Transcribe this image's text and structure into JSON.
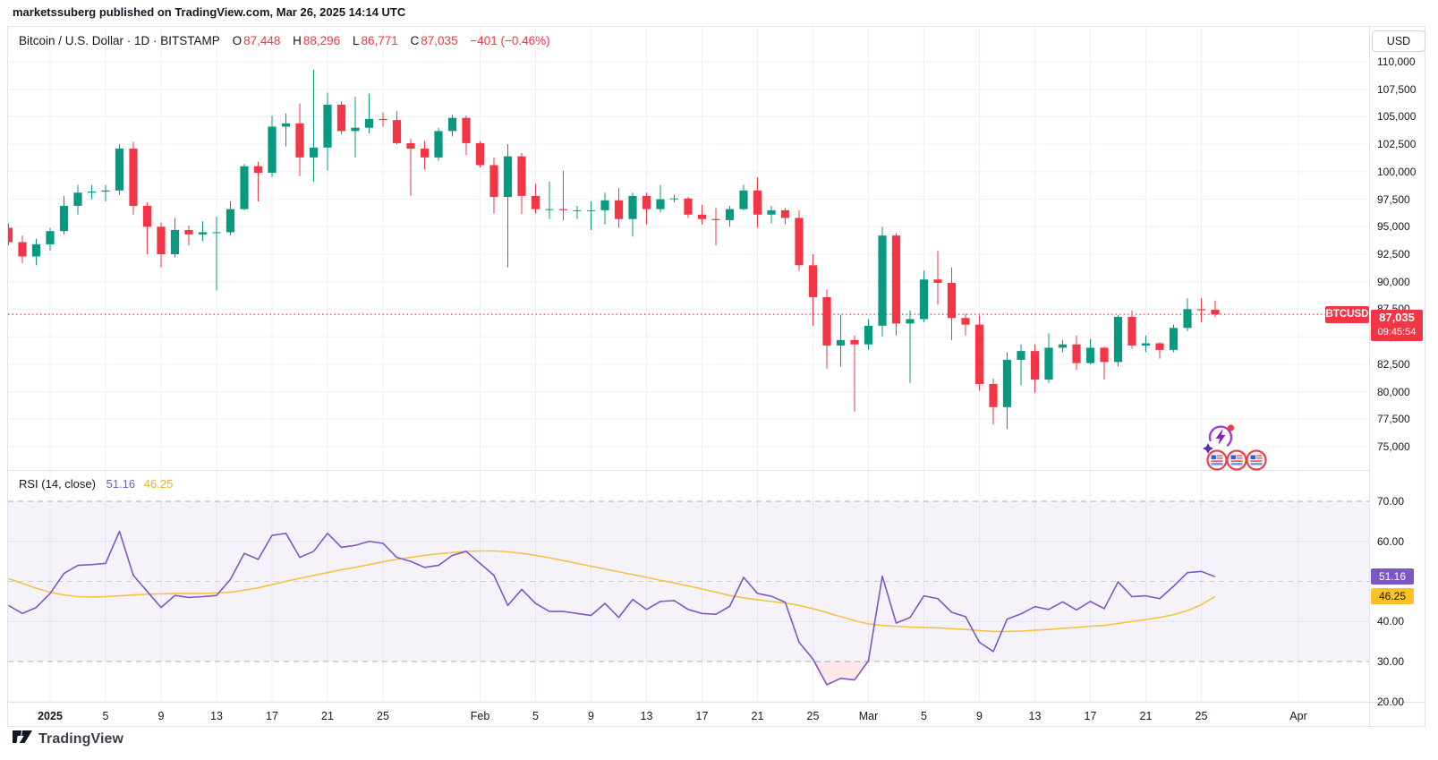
{
  "attribution": "marketssuberg published on TradingView.com, Mar 26, 2025 14:14 UTC",
  "header": {
    "symbol_title": "Bitcoin / U.S. Dollar · 1D · BITSTAMP",
    "o_label": "O",
    "o_value": "87,448",
    "h_label": "H",
    "h_value": "88,296",
    "l_label": "L",
    "l_value": "86,771",
    "c_label": "C",
    "c_value": "87,035",
    "change": "−401 (−0.46%)"
  },
  "price_axis": {
    "currency_button": "USD",
    "labels": [
      "110,000",
      "107,500",
      "105,000",
      "102,500",
      "100,000",
      "97,500",
      "95,000",
      "92,500",
      "90,000",
      "87,500",
      "85,000",
      "82,500",
      "80,000",
      "77,500",
      "75,000"
    ],
    "current_badge": {
      "symbol": "BTCUSD",
      "price": "87,035",
      "countdown": "09:45:54"
    }
  },
  "rsi_header": {
    "title": "RSI (14, close)",
    "value": "51.16",
    "ma_value": "46.25"
  },
  "rsi_axis_labels": [
    {
      "text": "70.00",
      "value": 70
    },
    {
      "text": "60.00",
      "value": 60
    },
    {
      "text": "40.00",
      "value": 40
    },
    {
      "text": "30.00",
      "value": 30
    },
    {
      "text": "20.00",
      "value": 20
    }
  ],
  "footer": {
    "logo_text": "TradingView"
  },
  "colors": {
    "up": "#089981",
    "down": "#f23645",
    "accent_red": "#f23645",
    "rsi_line": "#7e57c2",
    "rsi_ma_line": "#f5c342",
    "band_fill": "rgba(126,87,194,0.08)",
    "oversold_fill": "rgba(242,54,69,0.12)",
    "grid": "#eef0f6",
    "dashed": "#787b86",
    "text": "#131722",
    "border": "#e0e3eb"
  },
  "chart_data": {
    "type": "candlestick",
    "title": "Bitcoin / U.S. Dollar",
    "exchange": "BITSTAMP",
    "interval": "1D",
    "currency": "USD",
    "current_price": 87035,
    "price_axis_range": [
      75000,
      110000
    ],
    "price_axis_step": 2500,
    "time_ticks": [
      {
        "label": "2025",
        "idx": 3,
        "bold": true
      },
      {
        "label": "5",
        "idx": 7
      },
      {
        "label": "9",
        "idx": 11
      },
      {
        "label": "13",
        "idx": 15
      },
      {
        "label": "17",
        "idx": 19
      },
      {
        "label": "21",
        "idx": 23
      },
      {
        "label": "25",
        "idx": 27
      },
      {
        "label": "Feb",
        "idx": 34
      },
      {
        "label": "5",
        "idx": 38
      },
      {
        "label": "9",
        "idx": 42
      },
      {
        "label": "13",
        "idx": 46
      },
      {
        "label": "17",
        "idx": 50
      },
      {
        "label": "21",
        "idx": 54
      },
      {
        "label": "25",
        "idx": 58
      },
      {
        "label": "Mar",
        "idx": 62
      },
      {
        "label": "5",
        "idx": 66
      },
      {
        "label": "9",
        "idx": 70
      },
      {
        "label": "13",
        "idx": 74
      },
      {
        "label": "17",
        "idx": 78
      },
      {
        "label": "21",
        "idx": 82
      },
      {
        "label": "25",
        "idx": 86
      },
      {
        "label": "Apr",
        "idx": 93
      }
    ],
    "candles_format": [
      "date",
      "open",
      "high",
      "low",
      "close"
    ],
    "candles": [
      [
        "12-29",
        94900,
        95300,
        93300,
        93600
      ],
      [
        "12-30",
        93600,
        94200,
        91700,
        92300
      ],
      [
        "12-31",
        92300,
        93900,
        91500,
        93400
      ],
      [
        "01-01",
        93400,
        94900,
        92800,
        94600
      ],
      [
        "01-02",
        94600,
        97800,
        94300,
        96900
      ],
      [
        "01-03",
        96900,
        98800,
        96100,
        98100
      ],
      [
        "01-04",
        98100,
        98800,
        97500,
        98200
      ],
      [
        "01-05",
        98200,
        98800,
        97300,
        98300
      ],
      [
        "01-06",
        98300,
        102500,
        97900,
        102100
      ],
      [
        "01-07",
        102100,
        102700,
        96100,
        96900
      ],
      [
        "01-08",
        96900,
        97200,
        92500,
        95000
      ],
      [
        "01-09",
        95000,
        95400,
        91300,
        92500
      ],
      [
        "01-10",
        92500,
        95800,
        92200,
        94700
      ],
      [
        "01-11",
        94700,
        95100,
        93300,
        94300
      ],
      [
        "01-12",
        94300,
        95500,
        93700,
        94500
      ],
      [
        "01-13",
        94500,
        95900,
        89200,
        94500
      ],
      [
        "01-14",
        94500,
        97300,
        94200,
        96600
      ],
      [
        "01-15",
        96600,
        100700,
        96500,
        100500
      ],
      [
        "01-16",
        100500,
        100900,
        97300,
        99900
      ],
      [
        "01-17",
        99900,
        105100,
        99500,
        104100
      ],
      [
        "01-18",
        104100,
        105300,
        102300,
        104400
      ],
      [
        "01-19",
        104400,
        106200,
        99600,
        101300
      ],
      [
        "01-20",
        101300,
        109300,
        99100,
        102200
      ],
      [
        "01-21",
        102200,
        107200,
        100100,
        106100
      ],
      [
        "01-22",
        106100,
        106400,
        103400,
        103700
      ],
      [
        "01-23",
        103700,
        106800,
        101300,
        104000
      ],
      [
        "01-24",
        104000,
        107100,
        103500,
        104800
      ],
      [
        "01-25",
        104800,
        105400,
        104100,
        104700
      ],
      [
        "01-26",
        104700,
        105500,
        102500,
        102600
      ],
      [
        "01-27",
        102600,
        103000,
        97800,
        102100
      ],
      [
        "01-28",
        102100,
        102800,
        100200,
        101300
      ],
      [
        "01-29",
        101300,
        104000,
        101000,
        103700
      ],
      [
        "01-30",
        103700,
        105200,
        103200,
        104900
      ],
      [
        "01-31",
        104900,
        105100,
        101500,
        102600
      ],
      [
        "02-01",
        102600,
        102800,
        100400,
        100600
      ],
      [
        "02-02",
        100600,
        101300,
        96200,
        97700
      ],
      [
        "02-03",
        97700,
        102500,
        91300,
        101400
      ],
      [
        "02-04",
        101400,
        101700,
        96150,
        97800
      ],
      [
        "02-05",
        97800,
        98900,
        96200,
        96600
      ],
      [
        "02-06",
        96600,
        99100,
        95700,
        96600
      ],
      [
        "02-07",
        96600,
        100100,
        95600,
        96500
      ],
      [
        "02-08",
        96500,
        96900,
        95700,
        96500
      ],
      [
        "02-09",
        96500,
        97300,
        94700,
        96500
      ],
      [
        "02-10",
        96500,
        98100,
        95200,
        97400
      ],
      [
        "02-11",
        97400,
        98500,
        94900,
        95700
      ],
      [
        "02-12",
        95700,
        98100,
        94100,
        97800
      ],
      [
        "02-13",
        97800,
        98100,
        95200,
        96600
      ],
      [
        "02-14",
        96600,
        98800,
        96300,
        97500
      ],
      [
        "02-15",
        97500,
        97900,
        97200,
        97570
      ],
      [
        "02-16",
        97570,
        97700,
        95800,
        96100
      ],
      [
        "02-17",
        96100,
        97000,
        95200,
        95700
      ],
      [
        "02-18",
        95700,
        96700,
        93300,
        95600
      ],
      [
        "02-19",
        95600,
        96900,
        95000,
        96600
      ],
      [
        "02-20",
        96600,
        98800,
        96500,
        98300
      ],
      [
        "02-21",
        98300,
        99500,
        94900,
        96100
      ],
      [
        "02-22",
        96100,
        96900,
        95300,
        96500
      ],
      [
        "02-23",
        96500,
        96700,
        95200,
        95800
      ],
      [
        "02-24",
        95800,
        96500,
        91000,
        91500
      ],
      [
        "02-25",
        91500,
        92500,
        86000,
        88600
      ],
      [
        "02-26",
        88600,
        89300,
        82100,
        84200
      ],
      [
        "02-27",
        84200,
        87000,
        82300,
        84700
      ],
      [
        "02-28",
        84700,
        85100,
        78200,
        84300
      ],
      [
        "03-01",
        84300,
        86600,
        83800,
        86000
      ],
      [
        "03-02",
        86000,
        95000,
        85000,
        94200
      ],
      [
        "03-03",
        94200,
        94400,
        85100,
        86200
      ],
      [
        "03-04",
        86200,
        87400,
        80800,
        86600
      ],
      [
        "03-05",
        86600,
        91000,
        86300,
        90200
      ],
      [
        "03-06",
        90200,
        92800,
        87900,
        89900
      ],
      [
        "03-07",
        89900,
        91300,
        84700,
        86700
      ],
      [
        "03-08",
        86700,
        87100,
        85100,
        86100
      ],
      [
        "03-09",
        86100,
        86900,
        80100,
        80700
      ],
      [
        "03-10",
        80700,
        81200,
        77000,
        78600
      ],
      [
        "03-11",
        78600,
        83600,
        76600,
        82900
      ],
      [
        "03-12",
        82900,
        84300,
        80600,
        83700
      ],
      [
        "03-13",
        83700,
        84300,
        79900,
        81100
      ],
      [
        "03-14",
        81100,
        85300,
        80800,
        84000
      ],
      [
        "03-15",
        84000,
        84700,
        83600,
        84300
      ],
      [
        "03-16",
        84300,
        85100,
        82000,
        82600
      ],
      [
        "03-17",
        82600,
        84800,
        82500,
        84000
      ],
      [
        "03-18",
        84000,
        84100,
        81100,
        82700
      ],
      [
        "03-19",
        82700,
        87000,
        82300,
        86800
      ],
      [
        "03-20",
        86800,
        87400,
        83900,
        84200
      ],
      [
        "03-21",
        84200,
        85100,
        83600,
        84400
      ],
      [
        "03-22",
        84400,
        84500,
        83000,
        83800
      ],
      [
        "03-23",
        83800,
        86100,
        83600,
        85800
      ],
      [
        "03-24",
        85800,
        88500,
        85500,
        87500
      ],
      [
        "03-25",
        87500,
        88500,
        86300,
        87400
      ],
      [
        "03-26",
        87448,
        88296,
        86771,
        87035
      ]
    ],
    "indicator": {
      "name": "RSI",
      "period": 14,
      "source": "close",
      "overbought": 70,
      "mid": 50,
      "oversold": 30,
      "ylim": [
        20,
        70
      ],
      "last_value": 51.16,
      "last_ma": 46.25,
      "rsi": [
        44.0,
        42.0,
        43.5,
        47.0,
        52.0,
        54.0,
        54.2,
        54.5,
        62.5,
        51.5,
        47.5,
        43.5,
        46.5,
        46.0,
        46.2,
        46.5,
        50.5,
        57.0,
        55.5,
        61.5,
        62.0,
        56.0,
        57.5,
        62.0,
        58.5,
        59.0,
        60.0,
        59.5,
        56.0,
        55.0,
        53.5,
        54.0,
        56.5,
        57.5,
        54.5,
        51.5,
        44.0,
        48.0,
        44.5,
        42.5,
        42.5,
        42.0,
        41.5,
        44.5,
        41.0,
        45.5,
        43.0,
        45.0,
        45.2,
        43.0,
        42.0,
        41.8,
        43.8,
        51.0,
        47.0,
        46.3,
        44.8,
        34.8,
        30.6,
        24.2,
        25.8,
        25.4,
        30.2,
        51.3,
        39.6,
        41.0,
        46.4,
        45.7,
        42.3,
        41.2,
        34.8,
        32.5,
        40.6,
        41.9,
        43.7,
        43.0,
        44.9,
        42.9,
        45.0,
        43.2,
        49.9,
        46.2,
        46.4,
        45.7,
        48.8,
        52.2,
        52.5,
        51.16
      ],
      "rsi_ma": [
        50.7,
        49.5,
        48.3,
        47.3,
        46.6,
        46.2,
        46.1,
        46.2,
        46.4,
        46.6,
        46.8,
        46.9,
        47.0,
        47.0,
        47.0,
        47.1,
        47.3,
        47.8,
        48.4,
        49.2,
        50.0,
        50.8,
        51.5,
        52.2,
        52.9,
        53.5,
        54.2,
        54.9,
        55.5,
        56.0,
        56.5,
        56.9,
        57.2,
        57.5,
        57.6,
        57.6,
        57.4,
        57.0,
        56.5,
        55.9,
        55.2,
        54.5,
        53.8,
        53.1,
        52.4,
        51.7,
        51.0,
        50.3,
        49.6,
        48.9,
        48.1,
        47.3,
        46.5,
        45.9,
        45.4,
        45.0,
        44.6,
        44.0,
        43.2,
        42.2,
        41.2,
        40.2,
        39.4,
        39.0,
        38.8,
        38.6,
        38.5,
        38.4,
        38.2,
        38.0,
        37.7,
        37.5,
        37.5,
        37.6,
        37.8,
        38.0,
        38.3,
        38.5,
        38.8,
        39.0,
        39.5,
        40.0,
        40.5,
        41.0,
        41.7,
        42.7,
        44.2,
        46.25
      ]
    }
  }
}
